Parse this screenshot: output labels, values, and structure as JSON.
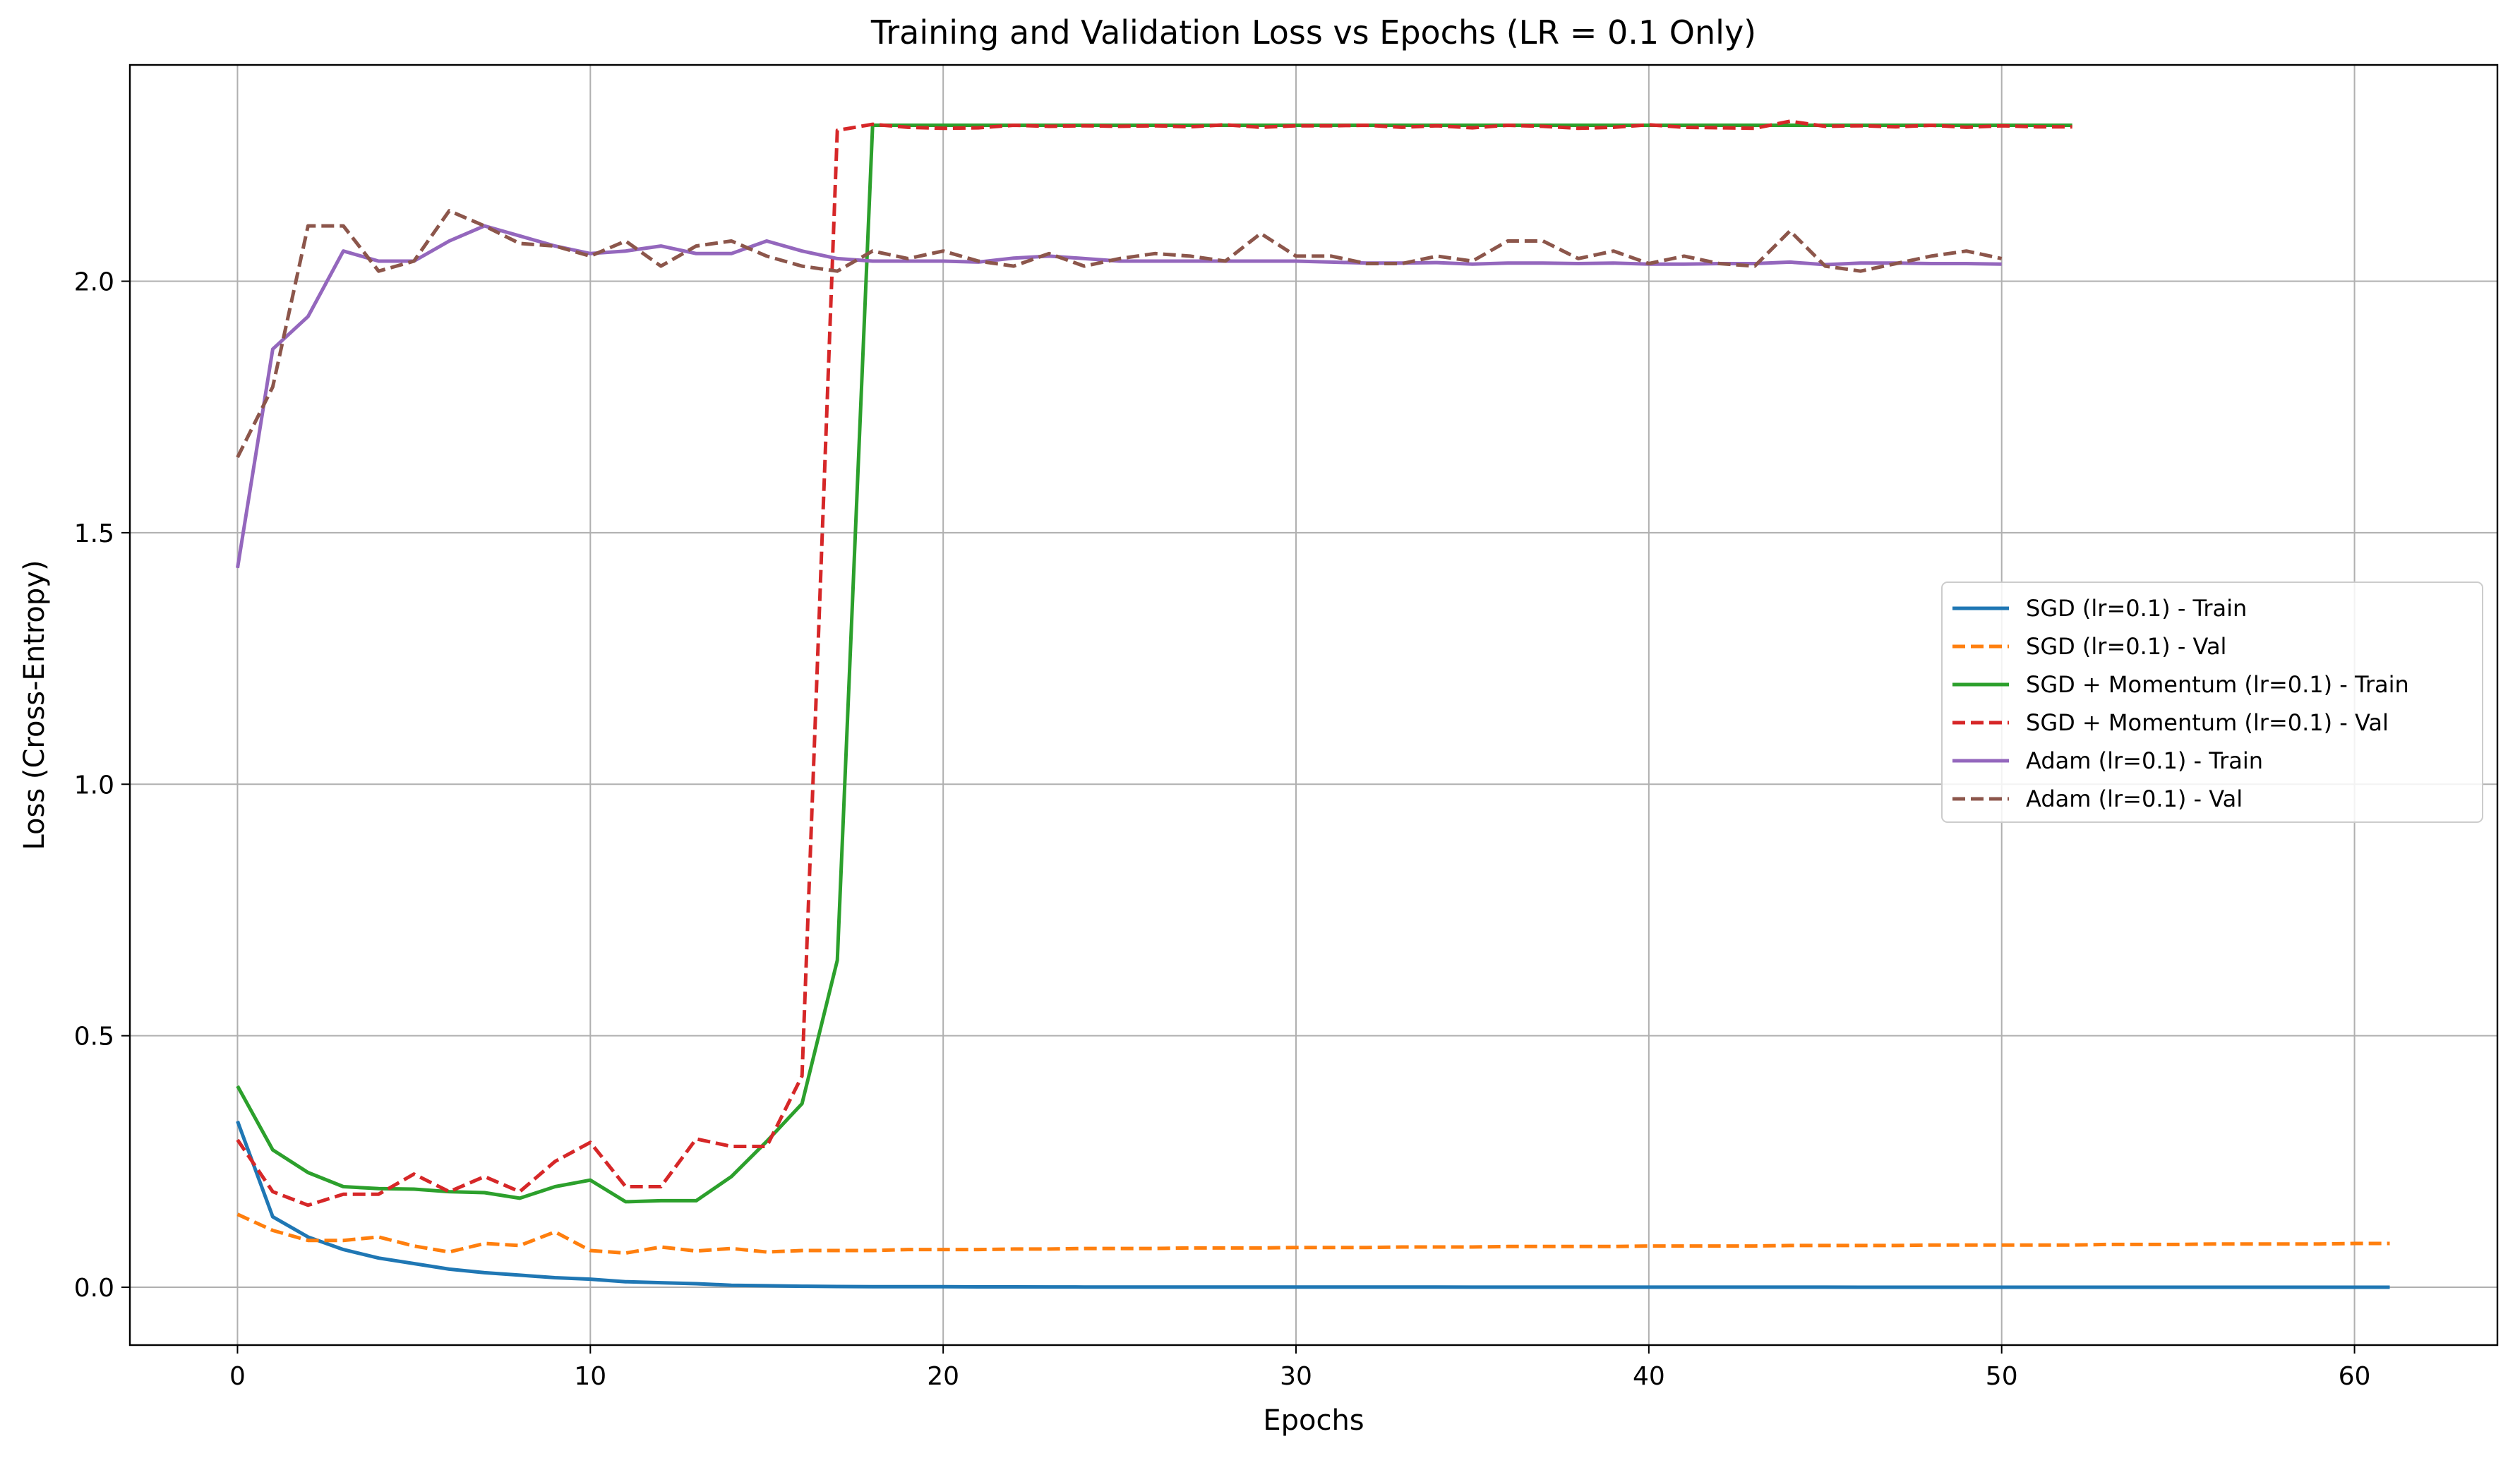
{
  "chart_data": {
    "type": "line",
    "title": "Training and Validation Loss vs Epochs (LR = 0.1 Only)",
    "xlabel": "Epochs",
    "ylabel": "Loss (Cross-Entropy)",
    "xlim": [
      -3.05,
      64.05
    ],
    "ylim": [
      -0.115,
      2.43
    ],
    "xticks": [
      0,
      10,
      20,
      30,
      40,
      50,
      60
    ],
    "yticks": [
      0.0,
      0.5,
      1.0,
      1.5,
      2.0
    ],
    "xtick_labels": [
      "0",
      "10",
      "20",
      "30",
      "40",
      "50",
      "60"
    ],
    "ytick_labels": [
      "0.0",
      "0.5",
      "1.0",
      "1.5",
      "2.0"
    ],
    "grid": true,
    "legend_position": "center-right",
    "series": [
      {
        "name": "SGD (lr=0.1) - Train",
        "color": "#1f77b4",
        "dash": "solid",
        "values": [
          0.33,
          0.14,
          0.1,
          0.075,
          0.058,
          0.047,
          0.036,
          0.029,
          0.024,
          0.019,
          0.016,
          0.011,
          0.009,
          0.007,
          0.004,
          0.003,
          0.002,
          0.0015,
          0.001,
          0.001,
          0.001,
          0.0008,
          0.0007,
          0.0006,
          0.0005,
          0.0005,
          0.0005,
          0.0004,
          0.0004,
          0.0004,
          0.0003,
          0.0003,
          0.0003,
          0.0003,
          0.0003,
          0.0002,
          0.0002,
          0.0002,
          0.0002,
          0.0002,
          0.0002,
          0.0002,
          0.0002,
          0.0002,
          0.0002,
          0.0002,
          0.0001,
          0.0001,
          0.0001,
          0.0001,
          0.0001,
          0.0001,
          0.0001,
          0.0001,
          0.0001,
          0.0001,
          0.0001,
          0.0001,
          0.0001,
          0.0001,
          0.0001,
          0.0001
        ]
      },
      {
        "name": "SGD (lr=0.1) - Val",
        "color": "#ff7f0e",
        "dash": "dashed",
        "values": [
          0.145,
          0.113,
          0.093,
          0.093,
          0.1,
          0.082,
          0.07,
          0.087,
          0.083,
          0.11,
          0.073,
          0.068,
          0.08,
          0.072,
          0.077,
          0.07,
          0.073,
          0.073,
          0.073,
          0.075,
          0.075,
          0.075,
          0.076,
          0.076,
          0.077,
          0.077,
          0.077,
          0.078,
          0.078,
          0.078,
          0.079,
          0.079,
          0.079,
          0.08,
          0.08,
          0.08,
          0.081,
          0.081,
          0.081,
          0.081,
          0.082,
          0.082,
          0.082,
          0.082,
          0.083,
          0.083,
          0.083,
          0.083,
          0.084,
          0.084,
          0.084,
          0.084,
          0.084,
          0.085,
          0.085,
          0.085,
          0.086,
          0.086,
          0.086,
          0.086,
          0.087,
          0.087
        ]
      },
      {
        "name": "SGD + Momentum (lr=0.1) - Train",
        "color": "#2ca02c",
        "dash": "solid",
        "values": [
          0.4,
          0.273,
          0.228,
          0.2,
          0.196,
          0.195,
          0.19,
          0.188,
          0.177,
          0.2,
          0.213,
          0.17,
          0.172,
          0.172,
          0.22,
          0.29,
          0.365,
          0.65,
          2.31,
          2.31,
          2.31,
          2.31,
          2.31,
          2.31,
          2.31,
          2.31,
          2.31,
          2.31,
          2.31,
          2.31,
          2.31,
          2.31,
          2.31,
          2.31,
          2.31,
          2.31,
          2.31,
          2.31,
          2.31,
          2.31,
          2.31,
          2.31,
          2.31,
          2.31,
          2.31,
          2.31,
          2.31,
          2.31,
          2.31,
          2.31,
          2.31,
          2.31,
          2.31
        ]
      },
      {
        "name": "SGD + Momentum (lr=0.1) - Val",
        "color": "#d62728",
        "dash": "dashed",
        "values": [
          0.293,
          0.19,
          0.163,
          0.185,
          0.185,
          0.225,
          0.19,
          0.22,
          0.19,
          0.25,
          0.288,
          0.2,
          0.2,
          0.295,
          0.28,
          0.28,
          0.42,
          2.3,
          2.312,
          2.306,
          2.304,
          2.305,
          2.31,
          2.308,
          2.309,
          2.308,
          2.309,
          2.307,
          2.311,
          2.306,
          2.309,
          2.309,
          2.31,
          2.306,
          2.309,
          2.305,
          2.31,
          2.308,
          2.304,
          2.306,
          2.311,
          2.306,
          2.305,
          2.304,
          2.318,
          2.308,
          2.309,
          2.307,
          2.31,
          2.306,
          2.309,
          2.307,
          2.307
        ]
      },
      {
        "name": "Adam (lr=0.1) - Train",
        "color": "#9467bd",
        "dash": "solid",
        "values": [
          1.43,
          1.865,
          1.93,
          2.06,
          2.04,
          2.04,
          2.08,
          2.11,
          2.09,
          2.07,
          2.055,
          2.06,
          2.07,
          2.055,
          2.055,
          2.08,
          2.06,
          2.045,
          2.04,
          2.04,
          2.04,
          2.038,
          2.046,
          2.05,
          2.045,
          2.04,
          2.04,
          2.04,
          2.04,
          2.04,
          2.04,
          2.038,
          2.036,
          2.036,
          2.037,
          2.034,
          2.036,
          2.036,
          2.035,
          2.036,
          2.034,
          2.034,
          2.035,
          2.035,
          2.038,
          2.033,
          2.036,
          2.036,
          2.035,
          2.035,
          2.034
        ]
      },
      {
        "name": "Adam (lr=0.1) - Val",
        "color": "#8c564b",
        "dash": "dashed",
        "values": [
          1.65,
          1.79,
          2.11,
          2.11,
          2.02,
          2.04,
          2.14,
          2.11,
          2.075,
          2.07,
          2.05,
          2.08,
          2.03,
          2.07,
          2.08,
          2.05,
          2.03,
          2.02,
          2.06,
          2.045,
          2.06,
          2.04,
          2.03,
          2.055,
          2.03,
          2.045,
          2.055,
          2.05,
          2.04,
          2.095,
          2.05,
          2.05,
          2.035,
          2.035,
          2.05,
          2.04,
          2.08,
          2.08,
          2.045,
          2.06,
          2.035,
          2.05,
          2.035,
          2.03,
          2.1,
          2.03,
          2.02,
          2.035,
          2.05,
          2.06,
          2.045
        ]
      }
    ]
  }
}
